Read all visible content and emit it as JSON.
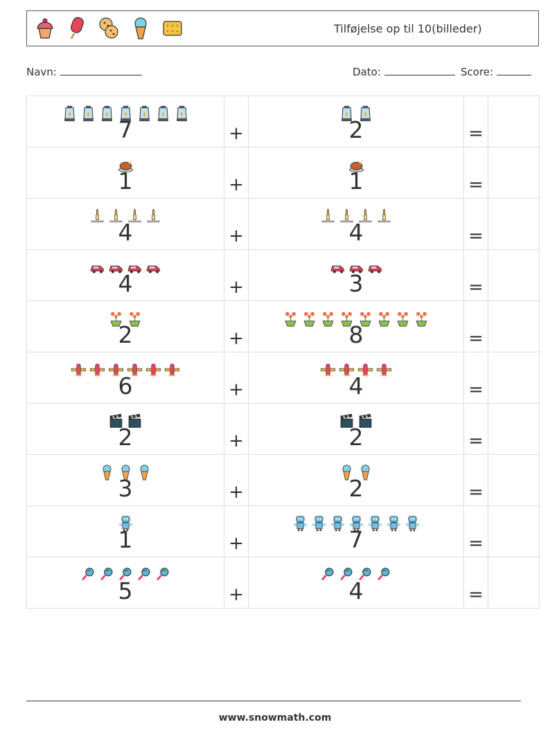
{
  "header": {
    "title": "Tilføjelse op til 10(billeder)",
    "icons": [
      "cupcake-icon",
      "popsicle-icon",
      "cookies-icon",
      "ice-cream-cone-icon",
      "biscuit-icon"
    ]
  },
  "info": {
    "name_label": "Navn:",
    "date_label": "Dato:",
    "score_label": "Score:"
  },
  "operators": {
    "plus": "+",
    "equals": "="
  },
  "rows": [
    {
      "left": {
        "value": "7",
        "icon": "lantern"
      },
      "right": {
        "value": "2",
        "icon": "lantern"
      }
    },
    {
      "left": {
        "value": "1",
        "icon": "roast-turkey"
      },
      "right": {
        "value": "1",
        "icon": "roast-turkey"
      }
    },
    {
      "left": {
        "value": "4",
        "icon": "candle"
      },
      "right": {
        "value": "4",
        "icon": "candle"
      }
    },
    {
      "left": {
        "value": "4",
        "icon": "car"
      },
      "right": {
        "value": "3",
        "icon": "car"
      }
    },
    {
      "left": {
        "value": "2",
        "icon": "flower-pot"
      },
      "right": {
        "value": "8",
        "icon": "flower-pot"
      }
    },
    {
      "left": {
        "value": "6",
        "icon": "airplane"
      },
      "right": {
        "value": "4",
        "icon": "airplane"
      }
    },
    {
      "left": {
        "value": "2",
        "icon": "clapperboard"
      },
      "right": {
        "value": "2",
        "icon": "clapperboard"
      }
    },
    {
      "left": {
        "value": "3",
        "icon": "ice-cream-cone"
      },
      "right": {
        "value": "2",
        "icon": "ice-cream-cone"
      }
    },
    {
      "left": {
        "value": "1",
        "icon": "robot"
      },
      "right": {
        "value": "7",
        "icon": "robot"
      }
    },
    {
      "left": {
        "value": "5",
        "icon": "magnifier"
      },
      "right": {
        "value": "4",
        "icon": "magnifier"
      }
    }
  ],
  "footer": {
    "url": "www.snowmath.com"
  }
}
